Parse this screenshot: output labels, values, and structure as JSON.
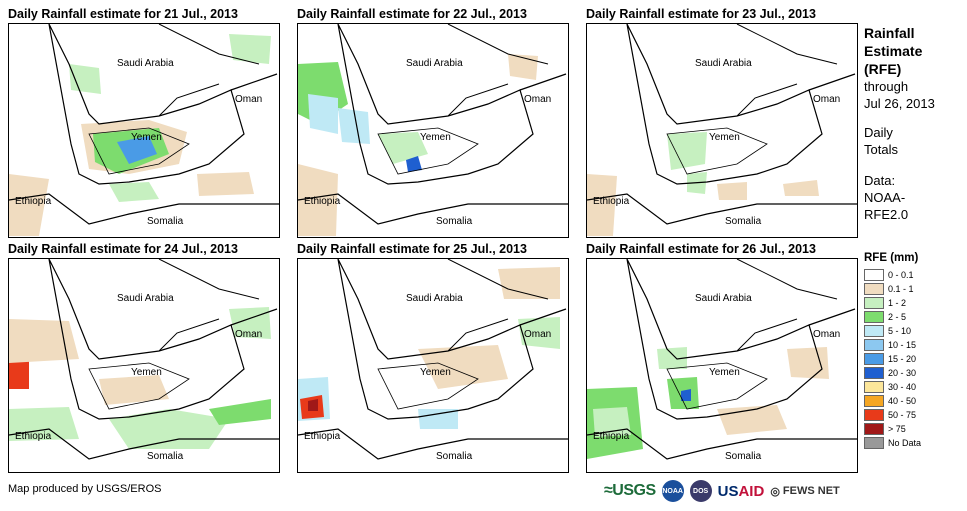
{
  "panels": [
    {
      "title": "Daily Rainfall estimate for 21 Jul., 2013"
    },
    {
      "title": "Daily Rainfall estimate for 22 Jul., 2013"
    },
    {
      "title": "Daily Rainfall estimate for 23 Jul., 2013"
    },
    {
      "title": "Daily Rainfall estimate for 24 Jul., 2013"
    },
    {
      "title": "Daily Rainfall estimate for 25 Jul., 2013"
    },
    {
      "title": "Daily Rainfall estimate for 26 Jul., 2013"
    }
  ],
  "countries": {
    "saudi": "Saudi Arabia",
    "oman": "Oman",
    "yemen": "Yemen",
    "ethiopia": "Ethiopia",
    "somalia": "Somalia"
  },
  "side": {
    "title_line1": "Rainfall",
    "title_line2": "Estimate",
    "title_line3": "(RFE)",
    "through": "through",
    "date": "Jul 26, 2013",
    "daily": "Daily",
    "totals": "Totals",
    "data_label": "Data:",
    "data_source1": "NOAA-",
    "data_source2": "RFE2.0"
  },
  "legend": {
    "title": "RFE (mm)",
    "items": [
      {
        "label": "0 - 0.1",
        "color": "#ffffff"
      },
      {
        "label": "0.1 - 1",
        "color": "#f0dcc0"
      },
      {
        "label": "1 - 2",
        "color": "#c6f0c0"
      },
      {
        "label": "2 - 5",
        "color": "#7ddc6e"
      },
      {
        "label": "5 - 10",
        "color": "#bfe9f5"
      },
      {
        "label": "10 - 15",
        "color": "#8cc8f0"
      },
      {
        "label": "15 - 20",
        "color": "#4a9be6"
      },
      {
        "label": "20 - 30",
        "color": "#1f5fd0"
      },
      {
        "label": "30 - 40",
        "color": "#fce69a"
      },
      {
        "label": "40 - 50",
        "color": "#f5a623"
      },
      {
        "label": "50 - 75",
        "color": "#e83a1a"
      },
      {
        "label": "> 75",
        "color": "#a01818"
      },
      {
        "label": "No Data",
        "color": "#999999"
      }
    ]
  },
  "credit": "Map produced by USGS/EROS",
  "logos": {
    "usgs": "≈USGS",
    "noaa": "NOAA",
    "dos": "DOS",
    "usaid_us": "US",
    "usaid_aid": "AID",
    "fews": "FEWS NET"
  }
}
